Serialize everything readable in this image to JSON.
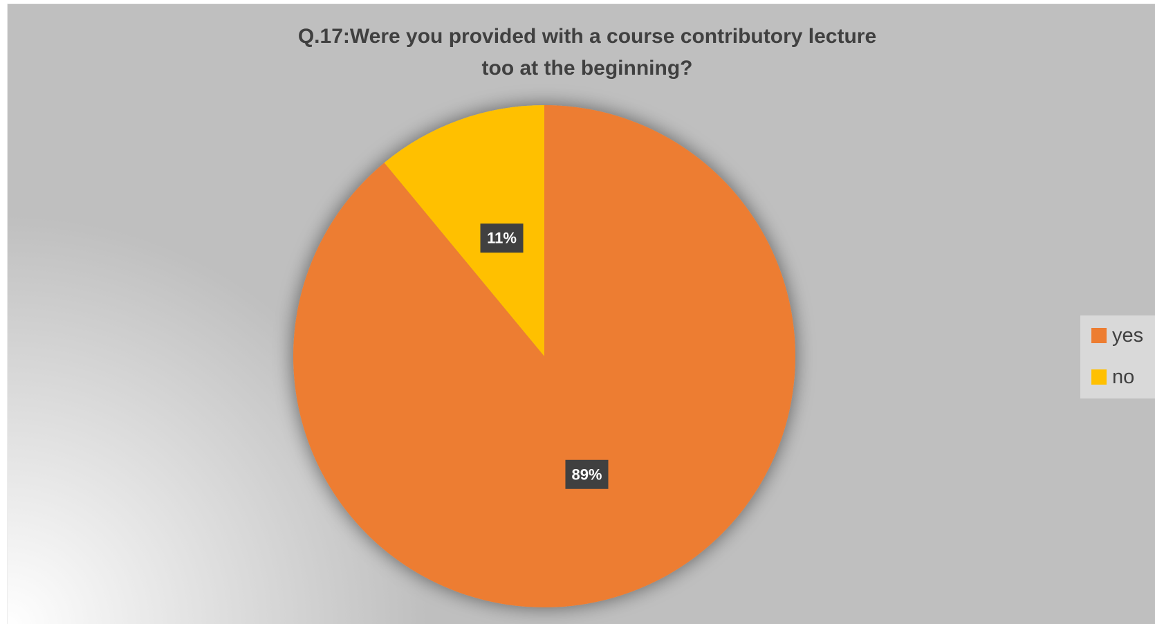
{
  "chart_data": {
    "type": "pie",
    "title": "Q.17:Were you provided with a course contributory lecture too at the beginning?",
    "categories": [
      "yes",
      "no"
    ],
    "values": [
      89,
      11
    ],
    "value_labels": [
      "89%",
      "11%"
    ],
    "colors": [
      "#ed7d31",
      "#ffc000"
    ],
    "legend": "right"
  }
}
